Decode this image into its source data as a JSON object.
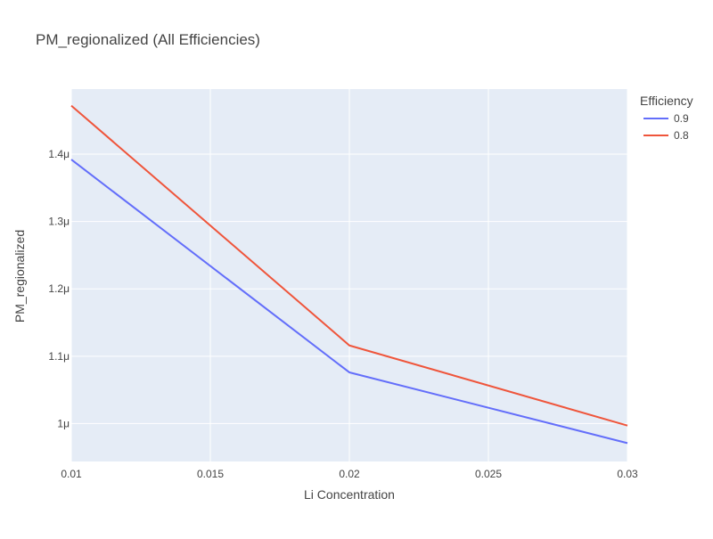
{
  "chart_data": {
    "type": "line",
    "title": "PM_regionalized (All Efficiencies)",
    "xlabel": "Li Concentration",
    "ylabel": "PM_regionalized",
    "x": [
      0.01,
      0.02,
      0.03
    ],
    "xlim": [
      0.01,
      0.03
    ],
    "ylim": [
      9.437e-07,
      1.4966e-06
    ],
    "x_ticks": [
      {
        "value": 0.01,
        "label": "0.01"
      },
      {
        "value": 0.015,
        "label": "0.015"
      },
      {
        "value": 0.02,
        "label": "0.02"
      },
      {
        "value": 0.025,
        "label": "0.025"
      },
      {
        "value": 0.03,
        "label": "0.03"
      }
    ],
    "y_ticks": [
      {
        "value": 1e-06,
        "label": "1μ"
      },
      {
        "value": 1.1e-06,
        "label": "1.1μ"
      },
      {
        "value": 1.2e-06,
        "label": "1.2μ"
      },
      {
        "value": 1.3e-06,
        "label": "1.3μ"
      },
      {
        "value": 1.4e-06,
        "label": "1.4μ"
      }
    ],
    "legend": {
      "title": "Efficiency",
      "position": "top-right"
    },
    "grid": true,
    "series": [
      {
        "name": "0.9",
        "color": "#636efa",
        "values": [
          1.392e-06,
          1.076e-06,
          9.71e-07
        ]
      },
      {
        "name": "0.8",
        "color": "#ef553b",
        "values": [
          1.472e-06,
          1.116e-06,
          9.97e-07
        ]
      }
    ]
  },
  "colors": {
    "plot_background": "#e5ecf6",
    "grid": "#ffffff",
    "text": "#444444",
    "title": "#444444"
  }
}
